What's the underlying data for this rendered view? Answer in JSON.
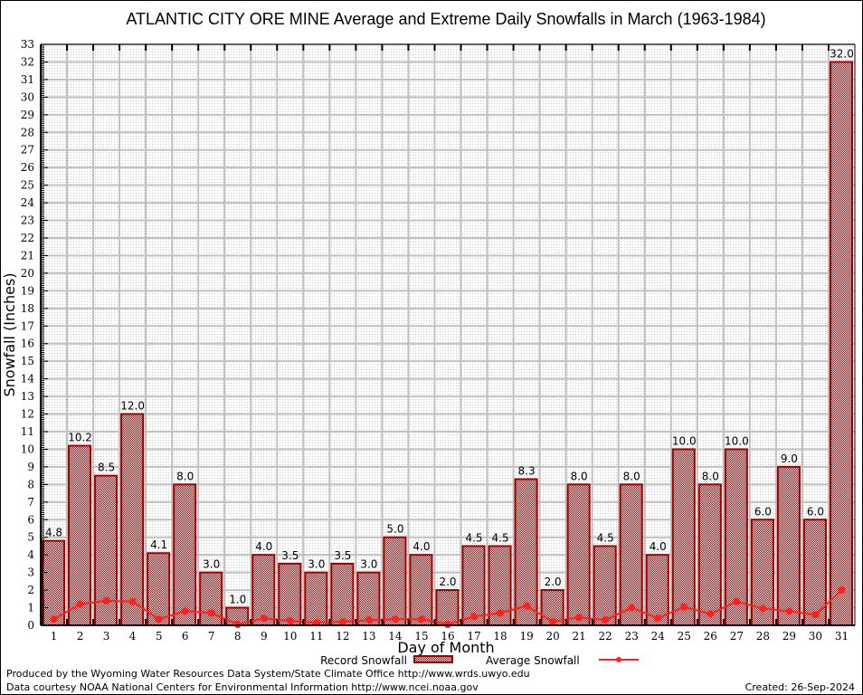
{
  "chart_data": {
    "type": "bar",
    "title": "ATLANTIC CITY ORE MINE Average and Extreme Daily Snowfalls in March (1963-1984)",
    "xlabel": "Day of Month",
    "ylabel": "Snowfall (Inches)",
    "ylim": [
      0,
      33
    ],
    "grid": true,
    "legend_position": "bottom-center",
    "categories": [
      "1",
      "2",
      "3",
      "4",
      "5",
      "6",
      "7",
      "8",
      "9",
      "10",
      "11",
      "12",
      "13",
      "14",
      "15",
      "16",
      "17",
      "18",
      "19",
      "20",
      "21",
      "22",
      "23",
      "24",
      "25",
      "26",
      "27",
      "28",
      "29",
      "30",
      "31"
    ],
    "yticks": [
      "0",
      "1",
      "2",
      "3",
      "4",
      "5",
      "6",
      "7",
      "8",
      "9",
      "10",
      "11",
      "12",
      "13",
      "14",
      "15",
      "16",
      "17",
      "18",
      "19",
      "20",
      "21",
      "22",
      "23",
      "24",
      "25",
      "26",
      "27",
      "28",
      "29",
      "30",
      "31",
      "32",
      "33"
    ],
    "series": [
      {
        "name": "Record Snowfall",
        "type": "bar",
        "color": "#a00000",
        "values": [
          4.8,
          10.2,
          8.5,
          12.0,
          4.1,
          8.0,
          3.0,
          1.0,
          4.0,
          3.5,
          3.0,
          3.5,
          3.0,
          5.0,
          4.0,
          2.0,
          4.5,
          4.5,
          8.3,
          2.0,
          8.0,
          4.5,
          8.0,
          4.0,
          10.0,
          8.0,
          10.0,
          6.0,
          9.0,
          6.0,
          32.0
        ],
        "labels": [
          "4.8",
          "10.2",
          "8.5",
          "12.0",
          "4.1",
          "8.0",
          "3.0",
          "1.0",
          "4.0",
          "3.5",
          "3.0",
          "3.5",
          "3.0",
          "5.0",
          "4.0",
          "2.0",
          "4.5",
          "4.5",
          "8.3",
          "2.0",
          "8.0",
          "4.5",
          "8.0",
          "4.0",
          "10.0",
          "8.0",
          "10.0",
          "6.0",
          "9.0",
          "6.0",
          "32.0"
        ]
      },
      {
        "name": "Average Snowfall",
        "type": "line",
        "color": "#ff2020",
        "values": [
          0.35,
          1.2,
          1.4,
          1.35,
          0.35,
          0.8,
          0.7,
          0.05,
          0.4,
          0.25,
          0.15,
          0.2,
          0.3,
          0.35,
          0.35,
          0.05,
          0.5,
          0.7,
          1.1,
          0.2,
          0.45,
          0.3,
          1.0,
          0.4,
          1.05,
          0.65,
          1.35,
          0.95,
          0.8,
          0.6,
          2.0
        ]
      }
    ]
  },
  "footer": {
    "produced_by": "Produced by the Wyoming Water Resources Data System/State Climate Office http://www.wrds.uwyo.edu",
    "data_courtesy": "Data courtesy NOAA National Centers for Environmental Information http://www.ncei.noaa.gov",
    "created": "Created: 26-Sep-2024"
  }
}
